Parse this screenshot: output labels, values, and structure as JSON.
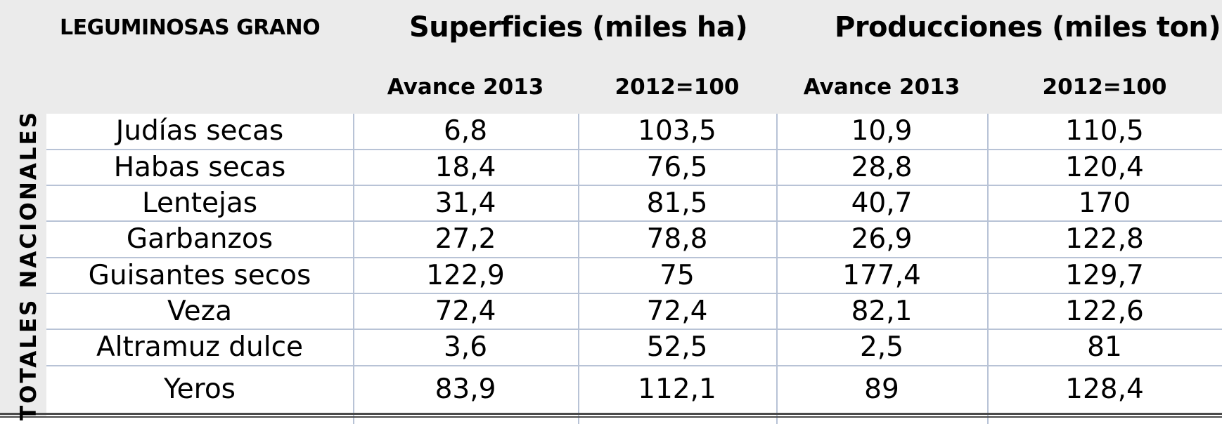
{
  "table": {
    "corner_title": "LEGUMINOSAS GRANO",
    "group_headers": {
      "surfaces": "Superficies (miles ha)",
      "productions": "Producciones (miles ton)"
    },
    "sub_headers": {
      "surfaces_avance": "Avance 2013",
      "surfaces_index": "2012=100",
      "productions_avance": "Avance 2013",
      "productions_index": "2012=100"
    },
    "row_group_label": "TOTALES NACIONALES",
    "rows": [
      {
        "name": "Judías secas",
        "sup_avance": "6,8",
        "sup_index": "103,5",
        "prod_avance": "10,9",
        "prod_index": "110,5"
      },
      {
        "name": "Habas secas",
        "sup_avance": "18,4",
        "sup_index": "76,5",
        "prod_avance": "28,8",
        "prod_index": "120,4"
      },
      {
        "name": "Lentejas",
        "sup_avance": "31,4",
        "sup_index": "81,5",
        "prod_avance": "40,7",
        "prod_index": "170"
      },
      {
        "name": "Garbanzos",
        "sup_avance": "27,2",
        "sup_index": "78,8",
        "prod_avance": "26,9",
        "prod_index": "122,8"
      },
      {
        "name": "Guisantes secos",
        "sup_avance": "122,9",
        "sup_index": "75",
        "prod_avance": "177,4",
        "prod_index": "129,7"
      },
      {
        "name": "Veza",
        "sup_avance": "72,4",
        "sup_index": "72,4",
        "prod_avance": "82,1",
        "prod_index": "122,6"
      },
      {
        "name": "Altramuz dulce",
        "sup_avance": "3,6",
        "sup_index": "52,5",
        "prod_avance": "2,5",
        "prod_index": "81"
      },
      {
        "name": "Yeros",
        "sup_avance": "83,9",
        "sup_index": "112,1",
        "prod_avance": "89",
        "prod_index": "128,4"
      }
    ]
  },
  "colors": {
    "header_background": "#ebebeb",
    "grid_line": "#b8c3d6",
    "bottom_rule": "#4a4a4a",
    "text": "#000000"
  }
}
